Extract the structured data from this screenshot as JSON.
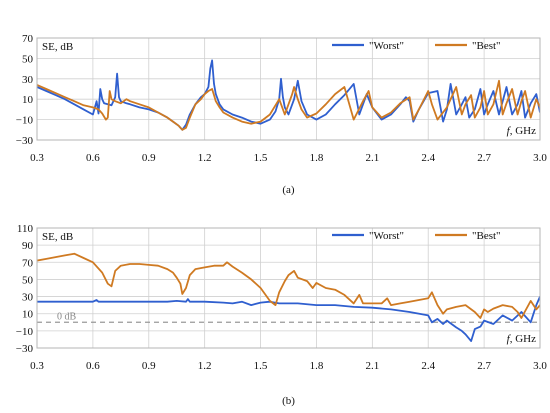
{
  "chart_data": [
    {
      "type": "line",
      "panel_label": "(a)",
      "ylabel": "SE, dB",
      "xlabel_var": "f",
      "xlabel_unit": ", GHz",
      "xlim": [
        0.3,
        3.0
      ],
      "ylim": [
        -30,
        70
      ],
      "xticks": [
        0.3,
        0.6,
        0.9,
        1.2,
        1.5,
        1.8,
        2.1,
        2.4,
        2.7,
        3.0
      ],
      "xtick_labels": [
        "0.3",
        "0.6",
        "0.9",
        "1.2",
        "1.5",
        "1.8",
        "2.1",
        "2.4",
        "2.7",
        "3.0"
      ],
      "yticks": [
        -30,
        -10,
        10,
        30,
        50,
        70
      ],
      "ytick_labels": [
        "−30",
        "−10",
        "10",
        "30",
        "50",
        "70"
      ],
      "legend_position": "top-right",
      "series": [
        {
          "name": "\"Worst\"",
          "color": "#2f5fcf",
          "x": [
            0.3,
            0.35,
            0.4,
            0.45,
            0.5,
            0.55,
            0.6,
            0.62,
            0.63,
            0.64,
            0.65,
            0.66,
            0.68,
            0.7,
            0.72,
            0.73,
            0.74,
            0.75,
            0.78,
            0.8,
            0.85,
            0.9,
            0.95,
            1.0,
            1.03,
            1.06,
            1.08,
            1.1,
            1.12,
            1.15,
            1.18,
            1.2,
            1.22,
            1.23,
            1.24,
            1.25,
            1.26,
            1.28,
            1.3,
            1.35,
            1.4,
            1.45,
            1.5,
            1.55,
            1.58,
            1.6,
            1.61,
            1.62,
            1.63,
            1.65,
            1.68,
            1.7,
            1.72,
            1.75,
            1.8,
            1.85,
            1.9,
            1.95,
            2.0,
            2.03,
            2.05,
            2.07,
            2.1,
            2.15,
            2.2,
            2.25,
            2.28,
            2.3,
            2.32,
            2.35,
            2.4,
            2.45,
            2.48,
            2.5,
            2.52,
            2.55,
            2.58,
            2.6,
            2.62,
            2.65,
            2.68,
            2.7,
            2.72,
            2.75,
            2.78,
            2.8,
            2.82,
            2.85,
            2.88,
            2.9,
            2.92,
            2.95,
            2.98,
            3.0
          ],
          "y": [
            22,
            18,
            14,
            10,
            5,
            0,
            -5,
            8,
            -4,
            20,
            10,
            6,
            5,
            4,
            12,
            35,
            12,
            8,
            6,
            5,
            2,
            0,
            -3,
            -8,
            -12,
            -16,
            -20,
            -15,
            -5,
            5,
            12,
            15,
            22,
            40,
            48,
            25,
            15,
            5,
            0,
            -5,
            -8,
            -12,
            -14,
            -10,
            -2,
            10,
            30,
            12,
            2,
            -5,
            10,
            28,
            8,
            -5,
            -10,
            -5,
            5,
            14,
            25,
            -5,
            5,
            15,
            2,
            -10,
            -5,
            5,
            12,
            8,
            -12,
            0,
            16,
            18,
            -12,
            0,
            25,
            -5,
            5,
            12,
            -8,
            0,
            20,
            -5,
            5,
            18,
            -5,
            8,
            22,
            -5,
            5,
            18,
            -8,
            6,
            15,
            -3
          ]
        },
        {
          "name": "\"Best\"",
          "color": "#cf7a22",
          "x": [
            0.3,
            0.35,
            0.4,
            0.45,
            0.5,
            0.55,
            0.6,
            0.63,
            0.65,
            0.67,
            0.68,
            0.69,
            0.7,
            0.72,
            0.75,
            0.78,
            0.8,
            0.85,
            0.9,
            0.95,
            1.0,
            1.03,
            1.06,
            1.08,
            1.1,
            1.12,
            1.15,
            1.18,
            1.2,
            1.22,
            1.24,
            1.25,
            1.26,
            1.28,
            1.3,
            1.35,
            1.4,
            1.45,
            1.5,
            1.55,
            1.6,
            1.63,
            1.65,
            1.67,
            1.68,
            1.7,
            1.72,
            1.75,
            1.8,
            1.85,
            1.9,
            1.95,
            2.0,
            2.05,
            2.08,
            2.1,
            2.15,
            2.2,
            2.25,
            2.3,
            2.32,
            2.35,
            2.4,
            2.42,
            2.45,
            2.5,
            2.55,
            2.58,
            2.6,
            2.63,
            2.65,
            2.68,
            2.7,
            2.72,
            2.75,
            2.78,
            2.8,
            2.82,
            2.85,
            2.88,
            2.9,
            2.92,
            2.95,
            2.98,
            3.0
          ],
          "y": [
            24,
            20,
            16,
            12,
            8,
            4,
            2,
            0,
            -4,
            -10,
            -8,
            18,
            10,
            8,
            6,
            10,
            8,
            5,
            2,
            -3,
            -8,
            -12,
            -16,
            -20,
            -18,
            -8,
            5,
            10,
            15,
            18,
            20,
            14,
            8,
            2,
            -3,
            -8,
            -12,
            -14,
            -12,
            -5,
            10,
            -5,
            5,
            15,
            22,
            10,
            0,
            -8,
            -4,
            5,
            15,
            22,
            -10,
            8,
            18,
            2,
            -8,
            -3,
            6,
            12,
            -10,
            0,
            18,
            5,
            -10,
            2,
            22,
            -5,
            5,
            14,
            -8,
            2,
            18,
            -5,
            5,
            28,
            -5,
            6,
            20,
            -5,
            8,
            18,
            -8,
            10,
            2
          ]
        }
      ]
    },
    {
      "type": "line",
      "panel_label": "(b)",
      "ylabel": "SE, dB",
      "xlabel_var": "f",
      "xlabel_unit": ", GHz",
      "xlim": [
        0.3,
        3.0
      ],
      "ylim": [
        -30,
        110
      ],
      "xticks": [
        0.3,
        0.6,
        0.9,
        1.2,
        1.5,
        1.8,
        2.1,
        2.4,
        2.7,
        3.0
      ],
      "xtick_labels": [
        "0.3",
        "0.6",
        "0.9",
        "1.2",
        "1.5",
        "1.8",
        "2.1",
        "2.4",
        "2.7",
        "3.0"
      ],
      "yticks": [
        -30,
        -10,
        10,
        30,
        50,
        70,
        90,
        110
      ],
      "ytick_labels": [
        "−30",
        "−10",
        "10",
        "30",
        "50",
        "70",
        "90",
        "110"
      ],
      "zero_line_label": "0 dB",
      "legend_position": "top-right",
      "series": [
        {
          "name": "\"Worst\"",
          "color": "#2f5fcf",
          "x": [
            0.3,
            0.4,
            0.5,
            0.6,
            0.62,
            0.63,
            0.7,
            0.8,
            0.9,
            1.0,
            1.05,
            1.1,
            1.11,
            1.12,
            1.2,
            1.3,
            1.35,
            1.4,
            1.45,
            1.5,
            1.55,
            1.6,
            1.7,
            1.8,
            1.9,
            2.0,
            2.1,
            2.2,
            2.3,
            2.4,
            2.42,
            2.45,
            2.48,
            2.5,
            2.55,
            2.58,
            2.6,
            2.63,
            2.65,
            2.68,
            2.7,
            2.75,
            2.8,
            2.85,
            2.9,
            2.95,
            2.98,
            3.0
          ],
          "y": [
            24,
            24,
            24,
            24,
            26,
            24,
            24,
            24,
            24,
            24,
            25,
            24,
            27,
            24,
            24,
            23,
            22,
            24,
            20,
            23,
            24,
            22,
            22,
            20,
            20,
            18,
            17,
            15,
            12,
            8,
            0,
            4,
            -2,
            2,
            -6,
            -10,
            -14,
            -22,
            -8,
            -5,
            2,
            -2,
            8,
            2,
            12,
            0,
            20,
            30
          ]
        },
        {
          "name": "\"Best\"",
          "color": "#cf7a22",
          "x": [
            0.3,
            0.35,
            0.4,
            0.45,
            0.5,
            0.55,
            0.6,
            0.65,
            0.68,
            0.7,
            0.72,
            0.75,
            0.8,
            0.85,
            0.9,
            0.95,
            1.0,
            1.03,
            1.05,
            1.07,
            1.08,
            1.1,
            1.12,
            1.15,
            1.2,
            1.25,
            1.3,
            1.32,
            1.35,
            1.4,
            1.45,
            1.5,
            1.55,
            1.58,
            1.6,
            1.63,
            1.65,
            1.68,
            1.7,
            1.75,
            1.78,
            1.8,
            1.85,
            1.9,
            1.95,
            2.0,
            2.03,
            2.05,
            2.1,
            2.15,
            2.18,
            2.2,
            2.25,
            2.3,
            2.35,
            2.4,
            2.42,
            2.45,
            2.48,
            2.5,
            2.55,
            2.6,
            2.65,
            2.68,
            2.7,
            2.72,
            2.75,
            2.8,
            2.85,
            2.88,
            2.9,
            2.95,
            2.98,
            3.0
          ],
          "y": [
            72,
            74,
            76,
            78,
            80,
            75,
            70,
            58,
            45,
            42,
            60,
            66,
            68,
            68,
            67,
            66,
            62,
            58,
            52,
            45,
            33,
            40,
            55,
            62,
            64,
            66,
            66,
            70,
            65,
            58,
            50,
            40,
            25,
            20,
            35,
            48,
            55,
            60,
            52,
            48,
            40,
            46,
            40,
            38,
            32,
            22,
            32,
            22,
            22,
            22,
            28,
            20,
            22,
            24,
            26,
            28,
            35,
            20,
            10,
            15,
            18,
            20,
            12,
            5,
            15,
            12,
            16,
            20,
            18,
            12,
            5,
            25,
            15,
            20
          ]
        }
      ]
    }
  ]
}
